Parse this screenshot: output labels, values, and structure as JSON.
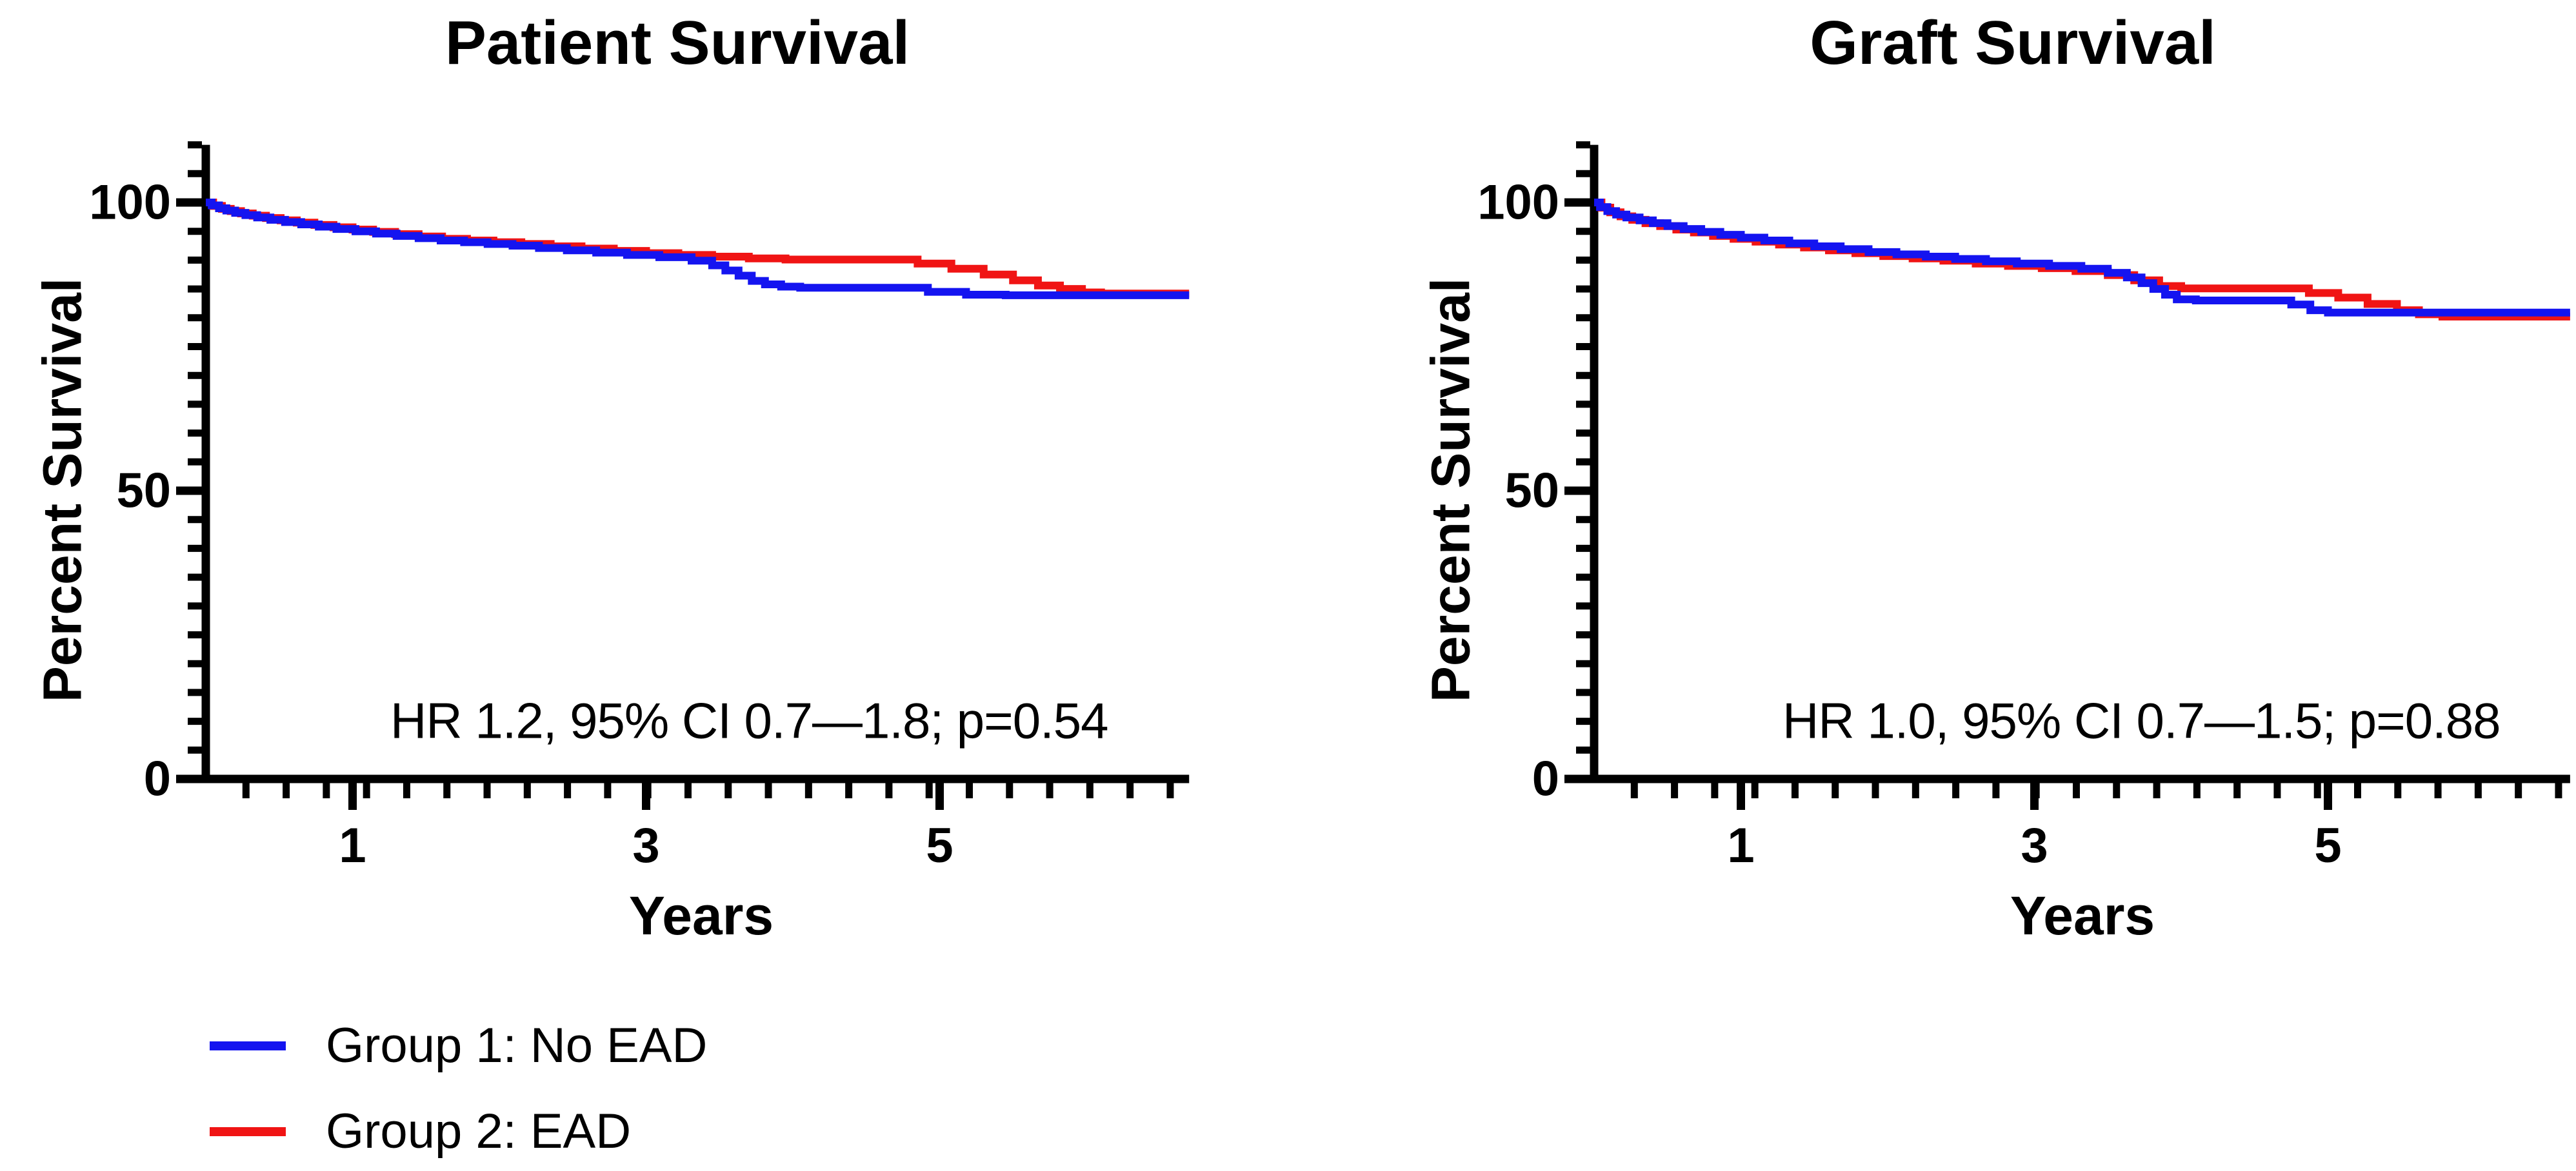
{
  "figure_name": "Kaplan-Meier survival curves, EAD vs no EAD",
  "colors": {
    "group1_blue": "#1414f0",
    "group2_red": "#f01414",
    "axis_black": "#000000",
    "background": "#ffffff"
  },
  "legend": {
    "position": "bottom-left",
    "items": [
      {
        "label": "Group 1: No EAD",
        "color": "#1414f0"
      },
      {
        "label": "Group 2: EAD",
        "color": "#f01414"
      }
    ]
  },
  "chart_data": [
    {
      "type": "line",
      "subtype": "kaplan-meier-step",
      "title": "Patient Survival",
      "xlabel": "Years",
      "ylabel": "Percent Survival",
      "annotation": "HR 1.2, 95% CI 0.7—1.8; p=0.54",
      "xlim_years": [
        0,
        6.7
      ],
      "ylim_percent": [
        0,
        110
      ],
      "grid": false,
      "x_major_ticks": [
        {
          "value": 1,
          "label": "1"
        },
        {
          "value": 3,
          "label": "3"
        },
        {
          "value": 5,
          "label": "5"
        }
      ],
      "y_major_ticks": [
        {
          "value": 0,
          "label": "0"
        },
        {
          "value": 50,
          "label": "50"
        },
        {
          "value": 100,
          "label": "100"
        }
      ],
      "x_minor_tick_interval_years": 0.2738,
      "y_minor_tick_interval": 5,
      "series": [
        {
          "name": "Group 2: EAD",
          "color": "#f01414",
          "points_year_percent": [
            [
              0,
              100
            ],
            [
              0.05,
              99.4
            ],
            [
              0.11,
              98.9
            ],
            [
              0.17,
              98.5
            ],
            [
              0.24,
              98.1
            ],
            [
              0.32,
              97.7
            ],
            [
              0.41,
              97.3
            ],
            [
              0.51,
              96.9
            ],
            [
              0.62,
              96.5
            ],
            [
              0.74,
              96.1
            ],
            [
              0.87,
              95.7
            ],
            [
              1,
              95.3
            ],
            [
              1.14,
              94.9
            ],
            [
              1.29,
              94.5
            ],
            [
              1.45,
              94.1
            ],
            [
              1.61,
              93.7
            ],
            [
              1.78,
              93.4
            ],
            [
              1.96,
              93.1
            ],
            [
              2.15,
              92.8
            ],
            [
              2.35,
              92.4
            ],
            [
              2.56,
              92
            ],
            [
              2.78,
              91.6
            ],
            [
              3,
              91.2
            ],
            [
              3.22,
              90.9
            ],
            [
              3.45,
              90.6
            ],
            [
              3.7,
              90.3
            ],
            [
              3.95,
              90.1
            ],
            [
              4.85,
              89.4
            ],
            [
              5.08,
              88.5
            ],
            [
              5.3,
              87.5
            ],
            [
              5.5,
              86.5
            ],
            [
              5.67,
              85.6
            ],
            [
              5.82,
              85
            ],
            [
              5.97,
              84.4
            ],
            [
              6.1,
              84.2
            ]
          ]
        },
        {
          "name": "Group 1: No EAD",
          "color": "#1414f0",
          "points_year_percent": [
            [
              0,
              100
            ],
            [
              0.04,
              99.5
            ],
            [
              0.09,
              99
            ],
            [
              0.14,
              98.6
            ],
            [
              0.2,
              98.2
            ],
            [
              0.27,
              97.8
            ],
            [
              0.35,
              97.4
            ],
            [
              0.44,
              97
            ],
            [
              0.54,
              96.6
            ],
            [
              0.65,
              96.2
            ],
            [
              0.77,
              95.8
            ],
            [
              0.89,
              95.4
            ],
            [
              1.02,
              95
            ],
            [
              1.16,
              94.6
            ],
            [
              1.3,
              94.2
            ],
            [
              1.45,
              93.8
            ],
            [
              1.6,
              93.4
            ],
            [
              1.76,
              93.1
            ],
            [
              1.92,
              92.8
            ],
            [
              2.09,
              92.5
            ],
            [
              2.27,
              92.1
            ],
            [
              2.46,
              91.7
            ],
            [
              2.66,
              91.3
            ],
            [
              2.87,
              90.9
            ],
            [
              3.09,
              90.5
            ],
            [
              3.31,
              89.9
            ],
            [
              3.45,
              89.1
            ],
            [
              3.54,
              88.2
            ],
            [
              3.63,
              87.3
            ],
            [
              3.72,
              86.4
            ],
            [
              3.81,
              85.8
            ],
            [
              3.92,
              85.4
            ],
            [
              4.05,
              85.2
            ],
            [
              4.92,
              84.5
            ],
            [
              5.18,
              84
            ],
            [
              5.45,
              83.9
            ]
          ]
        }
      ]
    },
    {
      "type": "line",
      "subtype": "kaplan-meier-step",
      "title": "Graft Survival",
      "xlabel": "Years",
      "ylabel": "Percent Survival",
      "annotation": "HR 1.0, 95% CI 0.7—1.5; p=0.88",
      "xlim_years": [
        0,
        6.65
      ],
      "ylim_percent": [
        0,
        110
      ],
      "grid": false,
      "x_major_ticks": [
        {
          "value": 1,
          "label": "1"
        },
        {
          "value": 3,
          "label": "3"
        },
        {
          "value": 5,
          "label": "5"
        }
      ],
      "y_major_ticks": [
        {
          "value": 0,
          "label": "0"
        },
        {
          "value": 50,
          "label": "50"
        },
        {
          "value": 100,
          "label": "100"
        }
      ],
      "x_minor_tick_interval_years": 0.2738,
      "y_minor_tick_interval": 5,
      "series": [
        {
          "name": "Group 2: EAD",
          "color": "#f01414",
          "points_year_percent": [
            [
              0,
              100
            ],
            [
              0.05,
              99.1
            ],
            [
              0.11,
              98.3
            ],
            [
              0.18,
              97.6
            ],
            [
              0.26,
              97
            ],
            [
              0.35,
              96.4
            ],
            [
              0.45,
              95.9
            ],
            [
              0.56,
              95.3
            ],
            [
              0.68,
              94.8
            ],
            [
              0.81,
              94.2
            ],
            [
              0.95,
              93.7
            ],
            [
              1.1,
              93.2
            ],
            [
              1.26,
              92.7
            ],
            [
              1.43,
              92.2
            ],
            [
              1.6,
              91.7
            ],
            [
              1.78,
              91.2
            ],
            [
              1.97,
              90.7
            ],
            [
              2.17,
              90.3
            ],
            [
              2.38,
              89.9
            ],
            [
              2.6,
              89.4
            ],
            [
              2.82,
              89
            ],
            [
              3.05,
              88.6
            ],
            [
              3.28,
              88.1
            ],
            [
              3.5,
              87.4
            ],
            [
              3.68,
              86.5
            ],
            [
              3.85,
              85.5
            ],
            [
              4,
              85.1
            ],
            [
              4.87,
              84.3
            ],
            [
              5.07,
              83.5
            ],
            [
              5.27,
              82.4
            ],
            [
              5.47,
              81.3
            ],
            [
              5.62,
              80.6
            ],
            [
              5.78,
              80.2
            ]
          ]
        },
        {
          "name": "Group 1: No EAD",
          "color": "#1414f0",
          "points_year_percent": [
            [
              0,
              100
            ],
            [
              0.04,
              99.2
            ],
            [
              0.09,
              98.5
            ],
            [
              0.15,
              97.9
            ],
            [
              0.22,
              97.4
            ],
            [
              0.31,
              96.9
            ],
            [
              0.4,
              96.4
            ],
            [
              0.5,
              95.9
            ],
            [
              0.61,
              95.4
            ],
            [
              0.73,
              94.9
            ],
            [
              0.86,
              94.4
            ],
            [
              1,
              93.9
            ],
            [
              1.16,
              93.4
            ],
            [
              1.33,
              92.9
            ],
            [
              1.5,
              92.4
            ],
            [
              1.68,
              91.9
            ],
            [
              1.87,
              91.4
            ],
            [
              2.06,
              91
            ],
            [
              2.26,
              90.6
            ],
            [
              2.46,
              90.2
            ],
            [
              2.67,
              89.8
            ],
            [
              2.88,
              89.4
            ],
            [
              3.1,
              89
            ],
            [
              3.32,
              88.5
            ],
            [
              3.5,
              87.8
            ],
            [
              3.63,
              87
            ],
            [
              3.73,
              86
            ],
            [
              3.81,
              85
            ],
            [
              3.89,
              84
            ],
            [
              3.97,
              83.2
            ],
            [
              4.1,
              83
            ],
            [
              4.75,
              82.3
            ],
            [
              4.88,
              81.3
            ],
            [
              5,
              80.9
            ]
          ]
        }
      ]
    }
  ]
}
